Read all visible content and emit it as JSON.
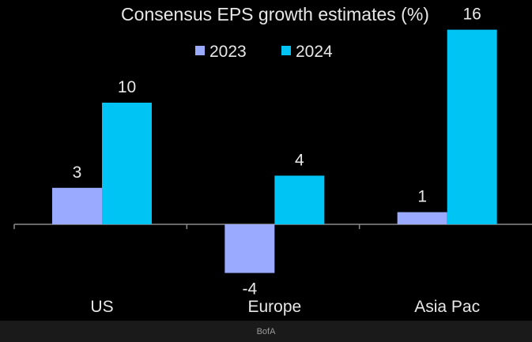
{
  "chart_data": {
    "type": "bar",
    "title": "Consensus EPS growth estimates (%)",
    "categories": [
      "US",
      "Europe",
      "Asia Pac"
    ],
    "series": [
      {
        "name": "2023",
        "values": [
          3,
          -4,
          1
        ],
        "color": "#99aaff"
      },
      {
        "name": "2024",
        "values": [
          10,
          4,
          16
        ],
        "color": "#00c4f4"
      }
    ],
    "ylim": [
      -4.5,
      17
    ],
    "legend_position": "top-center",
    "grid": false
  },
  "footer": {
    "source": "BofA"
  }
}
